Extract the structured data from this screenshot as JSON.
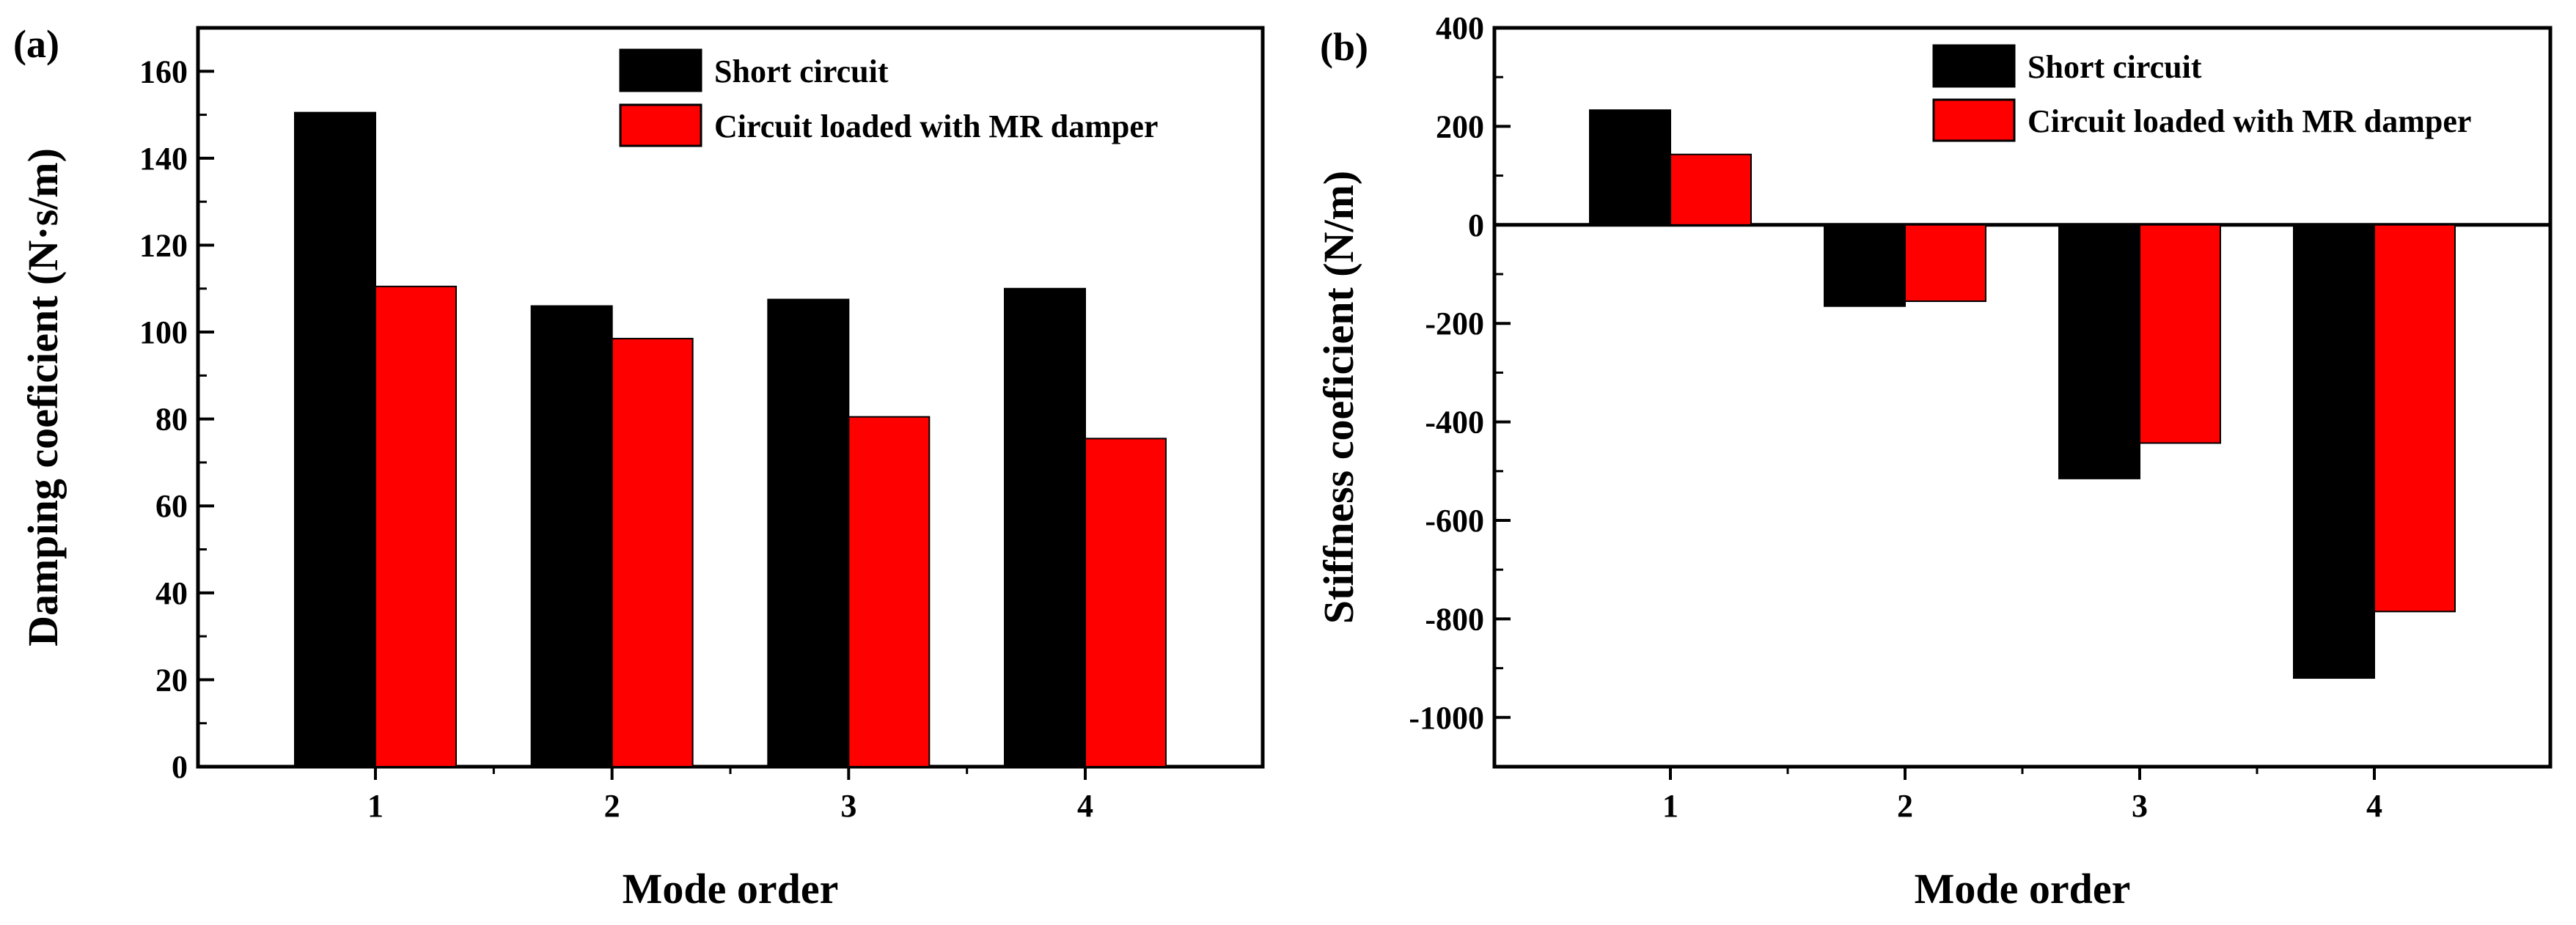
{
  "chart_data": [
    {
      "type": "bar",
      "panel_label": "(a)",
      "categories": [
        "1",
        "2",
        "3",
        "4"
      ],
      "series": [
        {
          "name": "Short circuit",
          "color": "#000000",
          "values": [
            150.5,
            106,
            107.5,
            110
          ]
        },
        {
          "name": "Circuit loaded with MR damper",
          "color": "#ff0000",
          "values": [
            110.5,
            98.5,
            80.5,
            75.5
          ]
        }
      ],
      "xlabel": "Mode order",
      "ylabel": "Damping coeficient (N·s/m)",
      "ylim": [
        0,
        170
      ],
      "yticks": [
        0,
        20,
        40,
        60,
        80,
        100,
        120,
        140,
        160
      ],
      "legend_position": "top-right",
      "grid": false
    },
    {
      "type": "bar",
      "panel_label": "(b)",
      "categories": [
        "1",
        "2",
        "3",
        "4"
      ],
      "series": [
        {
          "name": "Short circuit",
          "color": "#000000",
          "values": [
            233,
            -165,
            -515,
            -920
          ]
        },
        {
          "name": "Circuit loaded with MR damper",
          "color": "#ff0000",
          "values": [
            143,
            -155,
            -443,
            -785
          ]
        }
      ],
      "xlabel": "Mode order",
      "ylabel": "Stiffness coeficient (N/m)",
      "ylim": [
        -1100,
        400
      ],
      "yticks": [
        -1000,
        -800,
        -600,
        -400,
        -200,
        0,
        200,
        400
      ],
      "zero_line": true,
      "legend_position": "top-right",
      "grid": false
    }
  ]
}
